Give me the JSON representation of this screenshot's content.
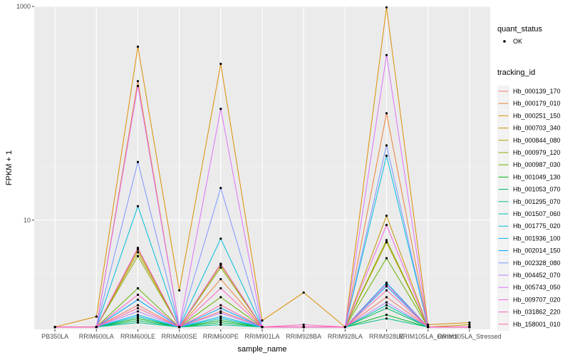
{
  "chart_data": {
    "type": "line",
    "xlabel": "sample_name",
    "ylabel": "FPKM + 1",
    "y_scale": "log10",
    "ylim": [
      0.95,
      1000
    ],
    "y_ticks": [
      10,
      1000
    ],
    "y_tick_labels": [
      "10",
      "1000"
    ],
    "grid": true,
    "legend_position": "right",
    "categories": [
      "PB350LA",
      "RRIM600LA",
      "RRIM600LE",
      "RRIM600SE",
      "RRIM600PE",
      "RRIM901LA",
      "RRIM928BA",
      "RRIM928LA",
      "RRIM928LE",
      "BPM105LA_Control",
      "BPM105LA_Stressed"
    ],
    "category_labels": [
      "PB350LA",
      "RRIM600LA",
      "RRIM600LE",
      "RRIM600SE",
      "RRIM600PE",
      "RRIM901LA",
      "RRIM928BA",
      "RRIM928LA",
      "RRIM928LE",
      "RRIM105LA_Control",
      "RRIM105LA_Stressed"
    ],
    "legend_shape": {
      "title": "quant_status",
      "items": [
        "OK"
      ]
    },
    "legend_color_title": "tracking_id",
    "series": [
      {
        "name": "Hb_000139_170",
        "color": "#F8766D",
        "values": [
          1,
          1,
          1.6,
          1,
          1.4,
          1,
          1,
          1,
          1.9,
          1,
          1
        ]
      },
      {
        "name": "Hb_000179_010",
        "color": "#EC8239",
        "values": [
          1,
          1,
          200,
          1,
          2.8,
          1,
          1,
          1,
          100,
          1,
          1
        ]
      },
      {
        "name": "Hb_000251_150",
        "color": "#DB8E00",
        "values": [
          1,
          1.25,
          420,
          2.2,
          290,
          1.15,
          2.1,
          1,
          980,
          1.05,
          1.1
        ]
      },
      {
        "name": "Hb_000703_340",
        "color": "#C79800",
        "values": [
          1,
          1,
          5.3,
          1,
          3.9,
          1,
          1,
          1,
          11,
          1,
          1.05
        ]
      },
      {
        "name": "Hb_000844_080",
        "color": "#AEA200",
        "values": [
          1,
          1,
          5.0,
          1,
          3.8,
          1,
          1,
          1,
          6.2,
          1,
          1
        ]
      },
      {
        "name": "Hb_000979_120",
        "color": "#8FAA00",
        "values": [
          1,
          1,
          4.6,
          1,
          3.6,
          1,
          1,
          1,
          6.5,
          1,
          1
        ]
      },
      {
        "name": "Hb_000987_030",
        "color": "#64B200",
        "values": [
          1,
          1,
          2.3,
          1,
          1.9,
          1,
          1,
          1,
          4.4,
          1,
          1
        ]
      },
      {
        "name": "Hb_001049_130",
        "color": "#00B81B",
        "values": [
          1,
          1,
          1.2,
          1,
          1.15,
          1,
          1,
          1,
          1.3,
          1,
          1
        ]
      },
      {
        "name": "Hb_001053_070",
        "color": "#00BD5C",
        "values": [
          1,
          1,
          1.15,
          1,
          1.1,
          1,
          1,
          1,
          1.5,
          1,
          1
        ]
      },
      {
        "name": "Hb_001295_070",
        "color": "#00C08E",
        "values": [
          1,
          1,
          1.1,
          1,
          1.05,
          1,
          1,
          1,
          1.2,
          1,
          1
        ]
      },
      {
        "name": "Hb_001507_060",
        "color": "#00C1B7",
        "values": [
          1,
          1,
          1.25,
          1,
          1.2,
          1,
          1,
          1,
          1.6,
          1,
          1
        ]
      },
      {
        "name": "Hb_001775_020",
        "color": "#00BDDC",
        "values": [
          1,
          1,
          13.5,
          1,
          6.7,
          1,
          1,
          1,
          40,
          1,
          1
        ]
      },
      {
        "name": "Hb_001936_100",
        "color": "#00B5F9",
        "values": [
          1,
          1,
          1.3,
          1,
          1.25,
          1,
          1,
          1,
          2.6,
          1,
          1
        ]
      },
      {
        "name": "Hb_002014_150",
        "color": "#00A5FF",
        "values": [
          1,
          1,
          1.8,
          1,
          1.5,
          1,
          1,
          1,
          2.4,
          1,
          1
        ]
      },
      {
        "name": "Hb_002328_080",
        "color": "#7C96FF",
        "values": [
          1,
          1,
          35,
          1,
          20,
          1,
          1,
          1,
          50,
          1,
          1
        ]
      },
      {
        "name": "Hb_004452_070",
        "color": "#B983FF",
        "values": [
          1,
          1,
          1.4,
          1,
          1.35,
          1,
          1,
          1,
          1.7,
          1,
          1
        ]
      },
      {
        "name": "Hb_005743_050",
        "color": "#DE71F9",
        "values": [
          1,
          1,
          180,
          1,
          110,
          1,
          1,
          1,
          350,
          1,
          1
        ]
      },
      {
        "name": "Hb_009707_020",
        "color": "#F464E3",
        "values": [
          1,
          1,
          5.5,
          1,
          3.9,
          1,
          1,
          1,
          9,
          1,
          1
        ]
      },
      {
        "name": "Hb_031862_220",
        "color": "#FF61C3",
        "values": [
          1,
          1,
          2.0,
          1,
          2.3,
          1,
          1.05,
          1,
          2.5,
          1,
          1
        ]
      },
      {
        "name": "Hb_158001_010",
        "color": "#FF67A4",
        "values": [
          1,
          1,
          1.5,
          1,
          1.6,
          1,
          1,
          1,
          2.2,
          1,
          1
        ]
      }
    ]
  }
}
